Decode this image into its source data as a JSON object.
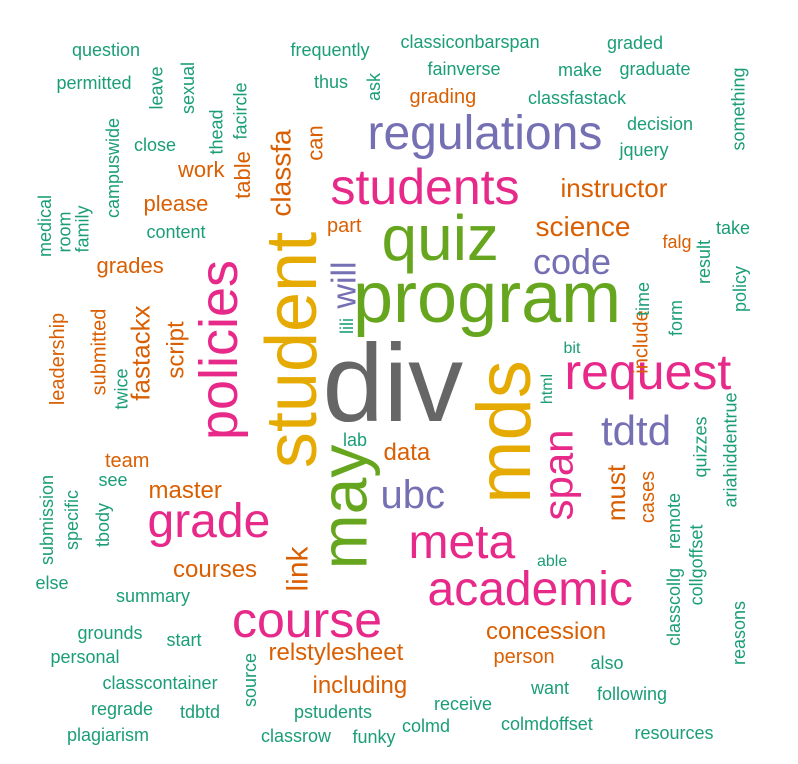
{
  "palette": {
    "gray": "#666666",
    "pink": "#e7298a",
    "green": "#1b9e77",
    "orange": "#d95f02",
    "purple": "#7570b3",
    "olive": "#66a61e",
    "gold": "#e6ab02"
  },
  "words": [
    {
      "text": "div",
      "color": "gray"
    },
    {
      "text": "program",
      "color": "olive"
    },
    {
      "text": "student",
      "color": "gold"
    },
    {
      "text": "mds",
      "color": "gold"
    },
    {
      "text": "may",
      "color": "olive"
    },
    {
      "text": "quiz",
      "color": "olive"
    },
    {
      "text": "students",
      "color": "pink"
    },
    {
      "text": "policies",
      "color": "pink"
    },
    {
      "text": "regulations",
      "color": "purple"
    },
    {
      "text": "course",
      "color": "pink"
    },
    {
      "text": "academic",
      "color": "pink"
    },
    {
      "text": "request",
      "color": "pink"
    },
    {
      "text": "grade",
      "color": "pink"
    },
    {
      "text": "meta",
      "color": "pink"
    },
    {
      "text": "span",
      "color": "pink"
    },
    {
      "text": "tdtd",
      "color": "purple"
    },
    {
      "text": "ubc",
      "color": "purple"
    },
    {
      "text": "code",
      "color": "purple"
    },
    {
      "text": "will",
      "color": "purple"
    },
    {
      "text": "link",
      "color": "orange"
    },
    {
      "text": "classfa",
      "color": "orange"
    },
    {
      "text": "science",
      "color": "orange"
    },
    {
      "text": "instructor",
      "color": "orange"
    },
    {
      "text": "concession",
      "color": "orange"
    },
    {
      "text": "relstylesheet",
      "color": "orange"
    },
    {
      "text": "including",
      "color": "orange"
    },
    {
      "text": "master",
      "color": "orange"
    },
    {
      "text": "courses",
      "color": "orange"
    },
    {
      "text": "fastackx",
      "color": "orange"
    },
    {
      "text": "script",
      "color": "orange"
    },
    {
      "text": "must",
      "color": "orange"
    },
    {
      "text": "data",
      "color": "orange"
    },
    {
      "text": "grades",
      "color": "orange"
    },
    {
      "text": "please",
      "color": "orange"
    },
    {
      "text": "person",
      "color": "orange"
    },
    {
      "text": "grading",
      "color": "orange"
    },
    {
      "text": "work",
      "color": "orange"
    },
    {
      "text": "table",
      "color": "orange"
    },
    {
      "text": "can",
      "color": "orange"
    },
    {
      "text": "include",
      "color": "orange"
    },
    {
      "text": "cases",
      "color": "orange"
    },
    {
      "text": "team",
      "color": "orange"
    },
    {
      "text": "part",
      "color": "orange"
    },
    {
      "text": "submitted",
      "color": "orange"
    },
    {
      "text": "leadership",
      "color": "orange"
    },
    {
      "text": "falg",
      "color": "orange"
    },
    {
      "text": "question",
      "color": "green"
    },
    {
      "text": "permitted",
      "color": "green"
    },
    {
      "text": "leave",
      "color": "green"
    },
    {
      "text": "sexual",
      "color": "green"
    },
    {
      "text": "frequently",
      "color": "green"
    },
    {
      "text": "classiconbarspan",
      "color": "green"
    },
    {
      "text": "graded",
      "color": "green"
    },
    {
      "text": "graduate",
      "color": "green"
    },
    {
      "text": "make",
      "color": "green"
    },
    {
      "text": "fainverse",
      "color": "green"
    },
    {
      "text": "thus",
      "color": "green"
    },
    {
      "text": "ask",
      "color": "green"
    },
    {
      "text": "classfastack",
      "color": "green"
    },
    {
      "text": "decision",
      "color": "green"
    },
    {
      "text": "something",
      "color": "green"
    },
    {
      "text": "jquery",
      "color": "green"
    },
    {
      "text": "close",
      "color": "green"
    },
    {
      "text": "campuswide",
      "color": "green"
    },
    {
      "text": "thead",
      "color": "green"
    },
    {
      "text": "facircle",
      "color": "green"
    },
    {
      "text": "content",
      "color": "green"
    },
    {
      "text": "take",
      "color": "green"
    },
    {
      "text": "result",
      "color": "green"
    },
    {
      "text": "policy",
      "color": "green"
    },
    {
      "text": "time",
      "color": "green"
    },
    {
      "text": "form",
      "color": "green"
    },
    {
      "text": "medical",
      "color": "green"
    },
    {
      "text": "room",
      "color": "green"
    },
    {
      "text": "family",
      "color": "green"
    },
    {
      "text": "lili",
      "color": "green"
    },
    {
      "text": "bit",
      "color": "green"
    },
    {
      "text": "html",
      "color": "green"
    },
    {
      "text": "twice",
      "color": "green"
    },
    {
      "text": "lab",
      "color": "green"
    },
    {
      "text": "quizzes",
      "color": "green"
    },
    {
      "text": "ariahiddentrue",
      "color": "green"
    },
    {
      "text": "see",
      "color": "green"
    },
    {
      "text": "specific",
      "color": "green"
    },
    {
      "text": "submission",
      "color": "green"
    },
    {
      "text": "tbody",
      "color": "green"
    },
    {
      "text": "else",
      "color": "green"
    },
    {
      "text": "summary",
      "color": "green"
    },
    {
      "text": "able",
      "color": "green"
    },
    {
      "text": "remote",
      "color": "green"
    },
    {
      "text": "collgoffset",
      "color": "green"
    },
    {
      "text": "classcollg",
      "color": "green"
    },
    {
      "text": "reasons",
      "color": "green"
    },
    {
      "text": "grounds",
      "color": "green"
    },
    {
      "text": "start",
      "color": "green"
    },
    {
      "text": "personal",
      "color": "green"
    },
    {
      "text": "source",
      "color": "green"
    },
    {
      "text": "also",
      "color": "green"
    },
    {
      "text": "classcontainer",
      "color": "green"
    },
    {
      "text": "receive",
      "color": "green"
    },
    {
      "text": "want",
      "color": "green"
    },
    {
      "text": "following",
      "color": "green"
    },
    {
      "text": "regrade",
      "color": "green"
    },
    {
      "text": "tdbtd",
      "color": "green"
    },
    {
      "text": "pstudents",
      "color": "green"
    },
    {
      "text": "colmd",
      "color": "green"
    },
    {
      "text": "colmdoffset",
      "color": "green"
    },
    {
      "text": "plagiarism",
      "color": "green"
    },
    {
      "text": "classrow",
      "color": "green"
    },
    {
      "text": "funky",
      "color": "green"
    },
    {
      "text": "resources",
      "color": "green"
    }
  ]
}
